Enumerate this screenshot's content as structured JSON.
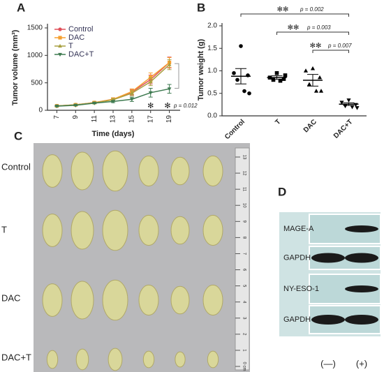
{
  "panel_labels": [
    "A",
    "B",
    "C",
    "D"
  ],
  "chart_data": [
    {
      "type": "line",
      "xlabel": "Time (days)",
      "ylabel": "Tumor volume (mm³)",
      "x": [
        7,
        9,
        11,
        13,
        15,
        17,
        19
      ],
      "xlim": [
        6,
        20
      ],
      "xticks": [
        7,
        9,
        11,
        13,
        15,
        17,
        19
      ],
      "ylim": [
        0,
        1500
      ],
      "yticks": [
        0,
        500,
        1000,
        1500
      ],
      "series": [
        {
          "name": "Control",
          "color": "#e0505a",
          "marker": "circle",
          "values": [
            80,
            100,
            140,
            200,
            330,
            560,
            870
          ],
          "errors": [
            10,
            12,
            15,
            25,
            50,
            80,
            100
          ]
        },
        {
          "name": "DAC",
          "color": "#f5a030",
          "marker": "square",
          "values": [
            80,
            100,
            140,
            200,
            340,
            600,
            870
          ],
          "errors": [
            10,
            12,
            15,
            25,
            50,
            80,
            90
          ]
        },
        {
          "name": "T",
          "color": "#a8a040",
          "marker": "triangle",
          "values": [
            80,
            100,
            135,
            190,
            310,
            520,
            830
          ],
          "errors": [
            10,
            12,
            15,
            25,
            45,
            70,
            90
          ]
        },
        {
          "name": "DAC+T",
          "color": "#3e7a50",
          "marker": "triangle-down",
          "values": [
            75,
            90,
            130,
            160,
            200,
            320,
            390
          ],
          "errors": [
            8,
            8,
            10,
            20,
            40,
            80,
            80
          ]
        }
      ],
      "annotations": [
        "✻",
        "✻",
        "p = 0.012"
      ]
    },
    {
      "type": "dotplot",
      "ylabel": "Tumor weight (g)",
      "categories": [
        "Control",
        "T",
        "DAC",
        "DAC+T"
      ],
      "ylim": [
        0,
        2
      ],
      "yticks": [
        {
          "value": 0,
          "label": "0.0"
        },
        0.5,
        {
          "value": 1,
          "label": "1.0"
        },
        1.5,
        {
          "value": 2,
          "label": "2.0"
        }
      ],
      "color": "#000000",
      "markers": [
        "circle",
        "square",
        "triangle",
        "triangle-down"
      ],
      "points": [
        [
          1.55,
          0.95,
          0.9,
          0.8,
          0.55,
          0.5
        ],
        [
          0.95,
          0.85,
          0.82,
          0.8,
          0.78,
          0.9
        ],
        [
          1.05,
          1.0,
          0.85,
          0.7,
          0.55,
          0.55
        ],
        [
          0.35,
          0.3,
          0.25,
          0.22,
          0.2,
          0.18
        ]
      ],
      "means": [
        0.88,
        0.85,
        0.79,
        0.26
      ],
      "sems": [
        0.17,
        0.04,
        0.13,
        0.03
      ],
      "comparisons": [
        {
          "stars": "✻✻",
          "p": "p = 0.002"
        },
        {
          "stars": "✻✻",
          "p": "p = 0.003"
        },
        {
          "stars": "✻✻",
          "p": "p = 0.007"
        }
      ]
    }
  ],
  "photo": {
    "row_labels": [
      "Control",
      "T",
      "DAC",
      "DAC+T"
    ],
    "ruler": [
      "13",
      "12",
      "11",
      "10",
      "9",
      "8",
      "7",
      "6",
      "5",
      "4",
      "3",
      "2",
      "1",
      "0 cm"
    ]
  },
  "blot": {
    "rows": [
      "MAGE-A",
      "GAPDH",
      "NY-ESO-1",
      "GAPDH"
    ],
    "lanes": [
      "(—)",
      "(+)"
    ]
  }
}
